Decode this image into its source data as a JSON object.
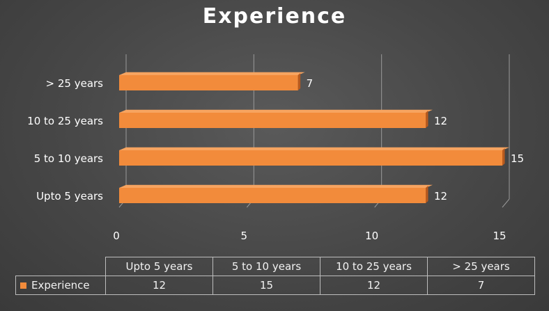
{
  "chart_data": {
    "type": "bar",
    "orientation": "horizontal",
    "title": "Experience",
    "categories": [
      "Upto 5 years",
      "5 to 10 years",
      "10 to 25 years",
      "> 25 years"
    ],
    "series": [
      {
        "name": "Experience",
        "values": [
          12,
          15,
          12,
          7
        ],
        "color": "#f28b3b"
      }
    ],
    "xlim": [
      0,
      15
    ],
    "xticks": [
      0,
      5,
      10,
      15
    ],
    "grid": true,
    "data_labels": true,
    "data_table": true,
    "legend": "data-table"
  },
  "colors": {
    "bar": "#f28b3b",
    "bar_dark": "#b85a1e",
    "bar_top": "#f7a460",
    "grid": "#9a9a9a",
    "text": "#ffffff"
  }
}
